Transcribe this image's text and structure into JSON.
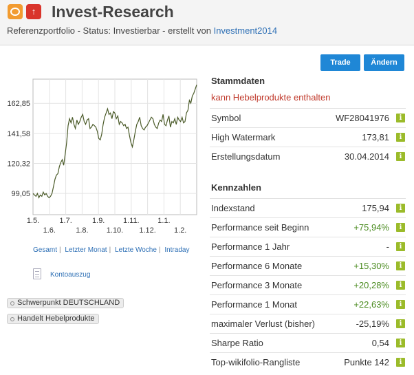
{
  "header": {
    "title": "Invest-Research",
    "subtitle_prefix": "Referenzportfolio - Status: Investierbar - erstellt von ",
    "author": "Investment2014"
  },
  "actions": {
    "trade": "Trade",
    "aendern": "Ändern"
  },
  "chart_data": {
    "type": "line",
    "y_ticks": [
      "162,85",
      "141,58",
      "120,32",
      "99,05"
    ],
    "y_tick_values": [
      162.85,
      141.58,
      120.32,
      99.05
    ],
    "ylim": [
      84,
      180
    ],
    "x_ticks_top": [
      "1.5.",
      "1.7.",
      "1.9.",
      "1.11.",
      "1.1."
    ],
    "x_ticks_bottom": [
      "1.6.",
      "1.8.",
      "1.10.",
      "1.12.",
      "1.2."
    ],
    "series": [
      {
        "values": [
          99,
          98,
          97,
          99,
          96,
          98,
          97,
          100,
          98,
          99,
          97,
          96,
          97,
          99,
          104,
          109,
          112,
          113,
          118,
          121,
          123,
          119,
          127,
          135,
          147,
          152,
          149,
          153,
          148,
          145,
          151,
          148,
          150,
          153,
          155,
          150,
          148,
          151,
          152,
          145,
          146,
          148,
          147,
          146,
          143,
          138,
          137,
          141,
          148,
          153,
          156,
          159,
          155,
          156,
          152,
          157,
          156,
          152,
          154,
          148,
          150,
          149,
          147,
          148,
          145,
          146,
          140,
          135,
          132,
          137,
          143,
          148,
          150,
          153,
          147,
          145,
          144,
          146,
          147,
          149,
          151,
          153,
          152,
          148,
          146,
          145,
          149,
          151,
          150,
          155,
          148,
          147,
          151,
          154,
          146,
          150,
          149,
          152,
          148,
          153,
          151,
          150,
          153,
          149,
          150,
          156,
          158,
          165,
          163,
          168,
          170,
          173,
          176
        ]
      }
    ],
    "grid": true
  },
  "range_links": [
    "Gesamt",
    "Letzter Monat",
    "Letzte Woche",
    "Intraday"
  ],
  "konto": "Kontoauszug",
  "tags": [
    "Schwerpunkt DEUTSCHLAND",
    "Handelt Hebelprodukte"
  ],
  "stammdaten": {
    "title": "Stammdaten",
    "notice": "kann Hebelprodukte enthalten",
    "rows": [
      {
        "label": "Symbol",
        "value": "WF28041976"
      },
      {
        "label": "High Watermark",
        "value": "173,81"
      },
      {
        "label": "Erstellungsdatum",
        "value": "30.04.2014"
      }
    ]
  },
  "kennzahlen": {
    "title": "Kennzahlen",
    "rows": [
      {
        "label": "Indexstand",
        "value": "175,94",
        "tone": "neutral"
      },
      {
        "label": "Performance seit Beginn",
        "value": "+75,94%",
        "tone": "pos"
      },
      {
        "label": "Performance 1 Jahr",
        "value": "-",
        "tone": "neutral"
      },
      {
        "label": "Performance 6 Monate",
        "value": "+15,30%",
        "tone": "pos"
      },
      {
        "label": "Performance 3 Monate",
        "value": "+20,28%",
        "tone": "pos"
      },
      {
        "label": "Performance 1 Monat",
        "value": "+22,63%",
        "tone": "pos"
      },
      {
        "label": "maximaler Verlust (bisher)",
        "value": "-25,19%",
        "tone": "neutral"
      },
      {
        "label": "Sharpe Ratio",
        "value": "0,54",
        "tone": "neutral"
      },
      {
        "label": "Top-wikifolio-Rangliste",
        "value": "Punkte 142",
        "tone": "neutral"
      }
    ]
  },
  "info_icon": "i",
  "colors": {
    "accent": "#1f87d6",
    "positive": "#4a8b1f",
    "warning": "#c0392b",
    "line": "#4a5a28"
  }
}
